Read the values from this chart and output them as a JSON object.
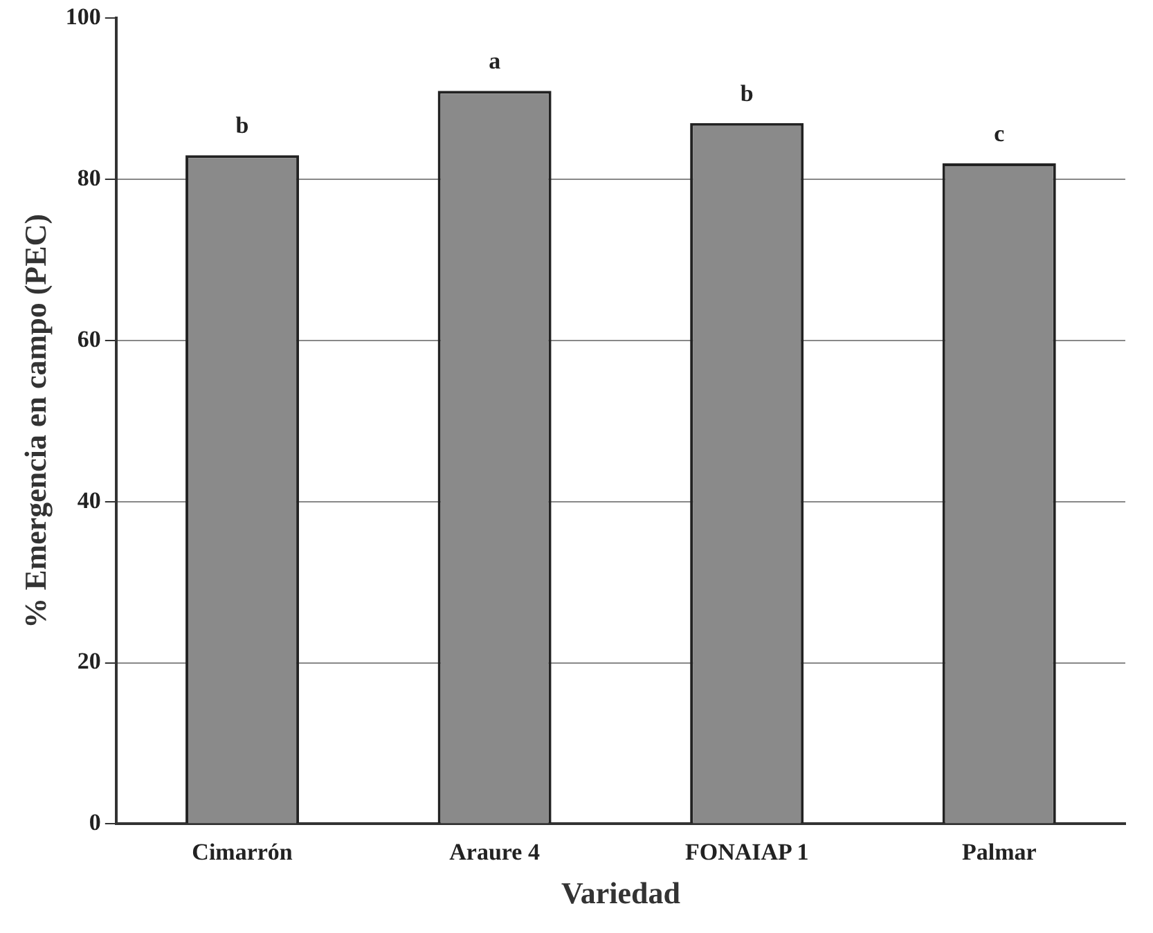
{
  "chart_data": {
    "type": "bar",
    "xlabel": "Variedad",
    "ylabel": "% Emergencia en campo (PEC)",
    "categories": [
      "Cimarrón",
      "Araure 4",
      "FONAIAP 1",
      "Palmar"
    ],
    "values": [
      83,
      91,
      87,
      82
    ],
    "color": "#8a8a8a",
    "ylim": [
      0,
      100
    ],
    "yticks": [
      0,
      20,
      40,
      60,
      80,
      100
    ],
    "grid": "y",
    "annotations": [
      {
        "text": "b",
        "x": "Cimarrón",
        "y": 83
      },
      {
        "text": "a",
        "x": "Araure 4",
        "y": 91
      },
      {
        "text": "b",
        "x": "FONAIAP 1",
        "y": 87
      },
      {
        "text": "c",
        "x": "Palmar",
        "y": 82
      }
    ]
  }
}
